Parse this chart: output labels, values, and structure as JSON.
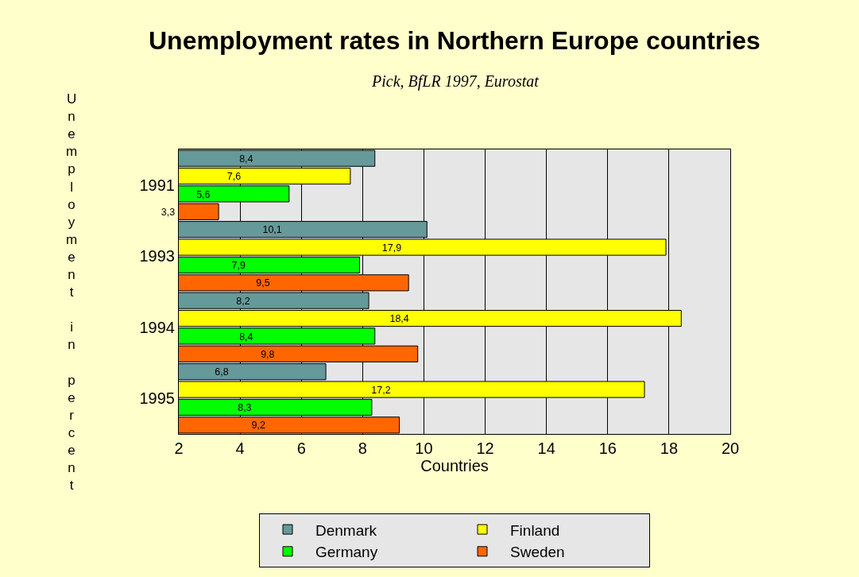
{
  "chart_data": {
    "type": "bar",
    "orientation": "horizontal",
    "title": "Unemployment rates in Northern Europe countries",
    "subtitle": "Pick, BfLR 1997, Eurostat",
    "xlabel": "Countries",
    "ylabel": "Unemployment in percent",
    "categories": [
      "1991",
      "1993",
      "1994",
      "1995"
    ],
    "series": [
      {
        "name": "Denmark",
        "color": "#669999",
        "values": [
          8.4,
          10.1,
          8.2,
          6.8
        ],
        "value_labels": [
          "8,4",
          "10,1",
          "8,2",
          "6,8"
        ]
      },
      {
        "name": "Finland",
        "color": "#ffff00",
        "values": [
          7.6,
          17.9,
          18.4,
          17.2
        ],
        "value_labels": [
          "7,6",
          "17,9",
          "18,4",
          "17,2"
        ]
      },
      {
        "name": "Germany",
        "color": "#00ff00",
        "values": [
          5.6,
          7.9,
          8.4,
          8.3
        ],
        "value_labels": [
          "5,6",
          "7,9",
          "8,4",
          "8,3"
        ]
      },
      {
        "name": "Sweden",
        "color": "#ff6600",
        "values": [
          3.3,
          9.5,
          9.8,
          9.2
        ],
        "value_labels": [
          "3,3",
          "9,5",
          "9,8",
          "9,2"
        ]
      }
    ],
    "xlim": [
      2,
      20
    ],
    "xticks": [
      2,
      4,
      6,
      8,
      10,
      12,
      14,
      16,
      18,
      20
    ],
    "grid": "x",
    "legend": "bottom"
  }
}
